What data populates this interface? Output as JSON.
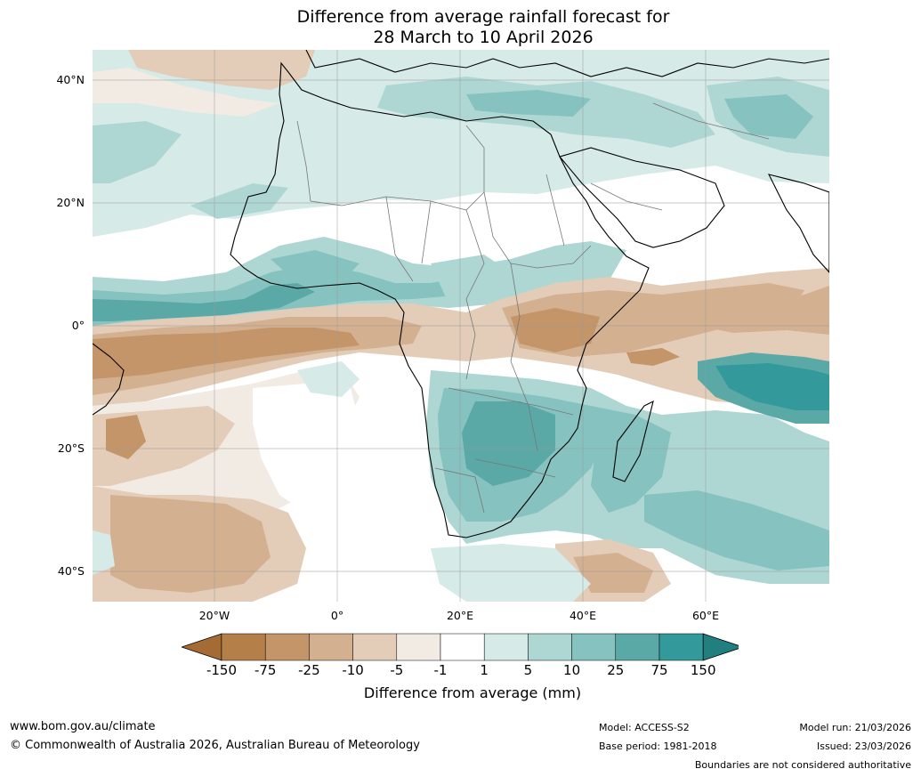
{
  "title": {
    "line1": "Difference from average rainfall forecast for",
    "line2": "28 March to 10 April 2026"
  },
  "map": {
    "lat_labels": [
      "40°N",
      "20°N",
      "0°",
      "20°S",
      "40°S"
    ],
    "lon_labels": [
      "20°W",
      "0°",
      "20°E",
      "40°E",
      "60°E"
    ]
  },
  "colorbar": {
    "title": "Difference from average (mm)",
    "labels": [
      "-150",
      "-75",
      "-25",
      "-10",
      "-5",
      "-1",
      "1",
      "5",
      "10",
      "25",
      "75",
      "150"
    ],
    "colors": [
      "#a46b35",
      "#b57f4a",
      "#c49569",
      "#d3b190",
      "#e3cdb8",
      "#f2ebe4",
      "#ffffff",
      "#d6eae8",
      "#aed7d4",
      "#86c2bf",
      "#5ba9a7",
      "#34999a",
      "#217f80"
    ]
  },
  "footer": {
    "url": "www.bom.gov.au/climate",
    "copyright": "© Commonwealth of Australia 2026, Australian Bureau of Meteorology",
    "model": "Model: ACCESS-S2",
    "base_period": "Base period: 1981-2018",
    "model_run": "Model run: 21/03/2026",
    "issued": "Issued: 23/03/2026",
    "disclaimer": "Boundaries are not considered authoritative"
  }
}
